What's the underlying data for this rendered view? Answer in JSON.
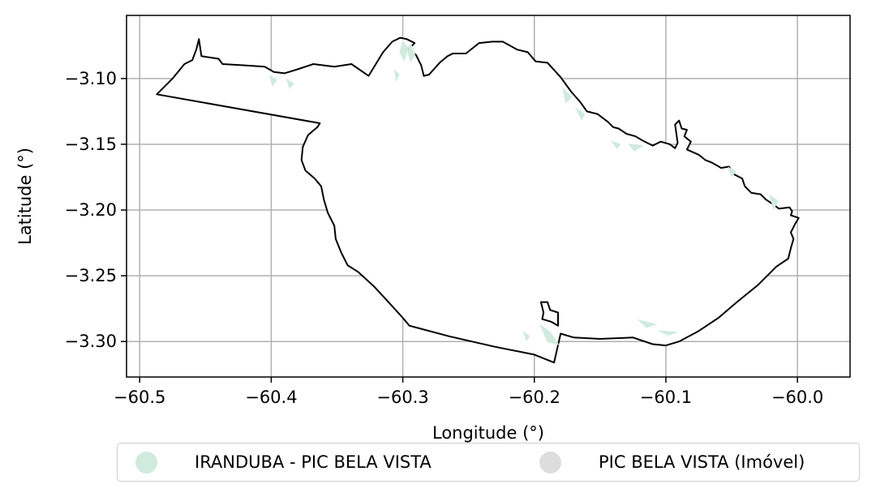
{
  "chart_data": {
    "type": "map",
    "xlabel": "Longitude (°)",
    "ylabel": "Latitude (°)",
    "xlim": [
      -60.51,
      -59.96
    ],
    "ylim": [
      -3.327,
      -3.052
    ],
    "xticks": [
      -60.5,
      -60.4,
      -60.3,
      -60.2,
      -60.1,
      -60.0
    ],
    "xtick_labels": [
      "−60.5",
      "−60.4",
      "−60.3",
      "−60.2",
      "−60.1",
      "−60.0"
    ],
    "yticks": [
      -3.1,
      -3.15,
      -3.2,
      -3.25,
      -3.3
    ],
    "ytick_labels": [
      "−3.10",
      "−3.15",
      "−3.20",
      "−3.25",
      "−3.30"
    ],
    "grid": true,
    "legend_position": "bottom-center",
    "boundary": {
      "name": "PIC BELA VISTA (Imóvel)",
      "outline_color": "#000000",
      "fill_color": "#ffffff",
      "lonlat": [
        [
          -60.487,
          -3.112
        ],
        [
          -60.475,
          -3.1
        ],
        [
          -60.466,
          -3.089
        ],
        [
          -60.46,
          -3.086
        ],
        [
          -60.457,
          -3.078
        ],
        [
          -60.455,
          -3.07
        ],
        [
          -60.453,
          -3.083
        ],
        [
          -60.44,
          -3.085
        ],
        [
          -60.437,
          -3.089
        ],
        [
          -60.42,
          -3.09
        ],
        [
          -60.405,
          -3.091
        ],
        [
          -60.398,
          -3.095
        ],
        [
          -60.39,
          -3.096
        ],
        [
          -60.38,
          -3.093
        ],
        [
          -60.368,
          -3.089
        ],
        [
          -60.352,
          -3.091
        ],
        [
          -60.339,
          -3.089
        ],
        [
          -60.326,
          -3.098
        ],
        [
          -60.315,
          -3.08
        ],
        [
          -60.308,
          -3.072
        ],
        [
          -60.302,
          -3.069
        ],
        [
          -60.297,
          -3.07
        ],
        [
          -60.291,
          -3.073
        ],
        [
          -60.296,
          -3.078
        ],
        [
          -60.29,
          -3.082
        ],
        [
          -60.286,
          -3.09
        ],
        [
          -60.284,
          -3.098
        ],
        [
          -60.28,
          -3.097
        ],
        [
          -60.272,
          -3.088
        ],
        [
          -60.266,
          -3.083
        ],
        [
          -60.262,
          -3.081
        ],
        [
          -60.252,
          -3.081
        ],
        [
          -60.242,
          -3.073
        ],
        [
          -60.232,
          -3.072
        ],
        [
          -60.224,
          -3.072
        ],
        [
          -60.213,
          -3.078
        ],
        [
          -60.205,
          -3.08
        ],
        [
          -60.199,
          -3.087
        ],
        [
          -60.19,
          -3.088
        ],
        [
          -60.18,
          -3.099
        ],
        [
          -60.172,
          -3.11
        ],
        [
          -60.165,
          -3.118
        ],
        [
          -60.16,
          -3.125
        ],
        [
          -60.152,
          -3.127
        ],
        [
          -60.144,
          -3.133
        ],
        [
          -60.14,
          -3.137
        ],
        [
          -60.136,
          -3.138
        ],
        [
          -60.13,
          -3.142
        ],
        [
          -60.123,
          -3.144
        ],
        [
          -60.118,
          -3.147
        ],
        [
          -60.11,
          -3.151
        ],
        [
          -60.104,
          -3.148
        ],
        [
          -60.097,
          -3.15
        ],
        [
          -60.093,
          -3.153
        ],
        [
          -60.091,
          -3.149
        ],
        [
          -60.093,
          -3.135
        ],
        [
          -60.09,
          -3.132
        ],
        [
          -60.088,
          -3.138
        ],
        [
          -60.084,
          -3.139
        ],
        [
          -60.086,
          -3.144
        ],
        [
          -60.081,
          -3.148
        ],
        [
          -60.084,
          -3.154
        ],
        [
          -60.075,
          -3.158
        ],
        [
          -60.07,
          -3.162
        ],
        [
          -60.065,
          -3.164
        ],
        [
          -60.058,
          -3.168
        ],
        [
          -60.052,
          -3.167
        ],
        [
          -60.048,
          -3.173
        ],
        [
          -60.042,
          -3.176
        ],
        [
          -60.04,
          -3.182
        ],
        [
          -60.035,
          -3.187
        ],
        [
          -60.028,
          -3.188
        ],
        [
          -60.024,
          -3.192
        ],
        [
          -60.018,
          -3.196
        ],
        [
          -60.014,
          -3.199
        ],
        [
          -60.006,
          -3.198
        ],
        [
          -60.004,
          -3.201
        ],
        [
          -60.005,
          -3.204
        ],
        [
          -59.999,
          -3.206
        ],
        [
          -60.002,
          -3.211
        ],
        [
          -60.005,
          -3.217
        ],
        [
          -60.003,
          -3.222
        ],
        [
          -60.005,
          -3.229
        ],
        [
          -60.007,
          -3.237
        ],
        [
          -60.016,
          -3.243
        ],
        [
          -60.03,
          -3.257
        ],
        [
          -60.046,
          -3.27
        ],
        [
          -60.06,
          -3.282
        ],
        [
          -60.075,
          -3.292
        ],
        [
          -60.09,
          -3.3
        ],
        [
          -60.1,
          -3.303
        ],
        [
          -60.11,
          -3.302
        ],
        [
          -60.125,
          -3.297
        ],
        [
          -60.15,
          -3.298
        ],
        [
          -60.17,
          -3.297
        ],
        [
          -60.18,
          -3.294
        ],
        [
          -60.185,
          -3.316
        ],
        [
          -60.2,
          -3.31
        ],
        [
          -60.23,
          -3.304
        ],
        [
          -60.265,
          -3.296
        ],
        [
          -60.295,
          -3.288
        ],
        [
          -60.3,
          -3.282
        ],
        [
          -60.31,
          -3.271
        ],
        [
          -60.322,
          -3.258
        ],
        [
          -60.334,
          -3.247
        ],
        [
          -60.342,
          -3.242
        ],
        [
          -60.347,
          -3.232
        ],
        [
          -60.351,
          -3.222
        ],
        [
          -60.352,
          -3.212
        ],
        [
          -60.357,
          -3.202
        ],
        [
          -60.36,
          -3.192
        ],
        [
          -60.362,
          -3.182
        ],
        [
          -60.367,
          -3.176
        ],
        [
          -60.374,
          -3.17
        ],
        [
          -60.377,
          -3.162
        ],
        [
          -60.376,
          -3.152
        ],
        [
          -60.372,
          -3.143
        ],
        [
          -60.365,
          -3.137
        ],
        [
          -60.363,
          -3.134
        ],
        [
          -60.487,
          -3.112
        ]
      ],
      "inner_lonlat": [
        [
          -60.195,
          -3.27
        ],
        [
          -60.193,
          -3.278
        ],
        [
          -60.194,
          -3.283
        ],
        [
          -60.187,
          -3.285
        ],
        [
          -60.182,
          -3.288
        ],
        [
          -60.182,
          -3.278
        ],
        [
          -60.188,
          -3.276
        ],
        [
          -60.19,
          -3.27
        ],
        [
          -60.195,
          -3.27
        ]
      ]
    },
    "patches": {
      "name": "IRANDUBA - PIC BELA VISTA",
      "color": "#d0ebde",
      "lonlat_polygons": [
        [
          [
            -60.3,
            -3.072
          ],
          [
            -60.296,
            -3.077
          ],
          [
            -60.299,
            -3.086
          ],
          [
            -60.302,
            -3.08
          ]
        ],
        [
          [
            -60.294,
            -3.074
          ],
          [
            -60.291,
            -3.082
          ],
          [
            -60.294,
            -3.087
          ],
          [
            -60.296,
            -3.08
          ]
        ],
        [
          [
            -60.401,
            -3.098
          ],
          [
            -60.399,
            -3.105
          ],
          [
            -60.396,
            -3.101
          ]
        ],
        [
          [
            -60.388,
            -3.101
          ],
          [
            -60.386,
            -3.107
          ],
          [
            -60.383,
            -3.104
          ]
        ],
        [
          [
            -60.306,
            -3.094
          ],
          [
            -60.305,
            -3.101
          ],
          [
            -60.303,
            -3.097
          ]
        ],
        [
          [
            -60.178,
            -3.108
          ],
          [
            -60.176,
            -3.118
          ],
          [
            -60.172,
            -3.114
          ]
        ],
        [
          [
            -60.168,
            -3.123
          ],
          [
            -60.164,
            -3.131
          ],
          [
            -60.162,
            -3.127
          ]
        ],
        [
          [
            -60.141,
            -3.148
          ],
          [
            -60.137,
            -3.153
          ],
          [
            -60.135,
            -3.15
          ]
        ],
        [
          [
            -60.128,
            -3.15
          ],
          [
            -60.124,
            -3.155
          ],
          [
            -60.118,
            -3.151
          ]
        ],
        [
          [
            -60.021,
            -3.189
          ],
          [
            -60.018,
            -3.199
          ],
          [
            -60.015,
            -3.193
          ]
        ],
        [
          [
            -60.195,
            -3.288
          ],
          [
            -60.19,
            -3.3
          ],
          [
            -60.182,
            -3.302
          ],
          [
            -60.188,
            -3.293
          ]
        ],
        [
          [
            -60.208,
            -3.293
          ],
          [
            -60.206,
            -3.299
          ],
          [
            -60.204,
            -3.296
          ]
        ],
        [
          [
            -60.12,
            -3.284
          ],
          [
            -60.115,
            -3.289
          ],
          [
            -60.108,
            -3.287
          ]
        ],
        [
          [
            -60.105,
            -3.292
          ],
          [
            -60.098,
            -3.295
          ],
          [
            -60.092,
            -3.293
          ]
        ],
        [
          [
            -60.052,
            -3.168
          ],
          [
            -60.05,
            -3.174
          ],
          [
            -60.047,
            -3.171
          ]
        ]
      ]
    },
    "legend": [
      {
        "label": "IRANDUBA - PIC BELA VISTA",
        "color": "#d0ebde"
      },
      {
        "label": "PIC BELA VISTA (Imóvel)",
        "color": "#dddddd"
      }
    ]
  }
}
